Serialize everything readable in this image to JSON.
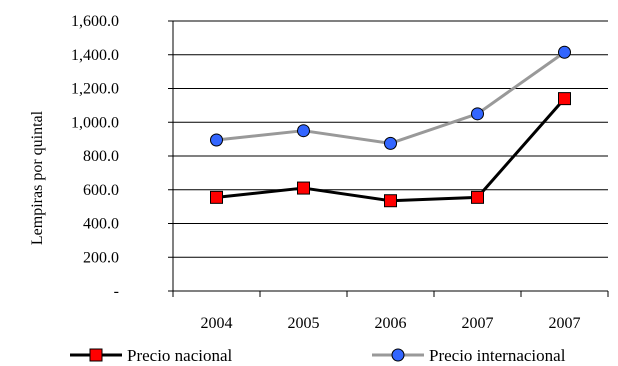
{
  "chart_data": {
    "type": "line",
    "categories": [
      "2004",
      "2005",
      "2006",
      "2007",
      "2007"
    ],
    "series": [
      {
        "name": "Precio nacional",
        "values": [
          555,
          610,
          535,
          555,
          1140
        ],
        "color": "#000000",
        "marker": "square",
        "marker_color": "#ff0000"
      },
      {
        "name": "Precio internacional",
        "values": [
          895,
          950,
          875,
          1050,
          1415
        ],
        "color": "#999999",
        "marker": "circle",
        "marker_color": "#3366ff"
      }
    ],
    "ylabel": "Lempiras por quintal",
    "xlabel": "",
    "title": "",
    "ylim": [
      0,
      1600
    ],
    "y_ticks": [
      0,
      200,
      400,
      600,
      800,
      1000,
      1200,
      1400,
      1600
    ],
    "y_tick_labels": [
      "-",
      "200.0",
      "400.0",
      "600.0",
      "800.0",
      "1,000.0",
      "1,200.0",
      "1,400.0",
      "1,600.0"
    ],
    "grid": true,
    "legend_position": "bottom"
  }
}
